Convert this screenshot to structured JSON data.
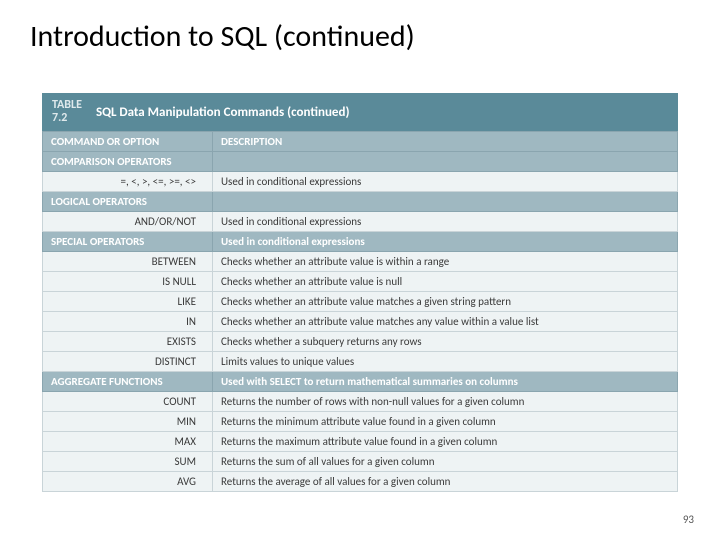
{
  "slide": {
    "title": "Introduction to SQL (continued)",
    "page_number": "93"
  },
  "table": {
    "label_line1": "TABLE",
    "label_line2": "7.2",
    "caption": "SQL Data Manipulation Commands (continued)",
    "columns": {
      "left": "COMMAND OR OPTION",
      "right": "DESCRIPTION"
    },
    "sections": [
      {
        "name": "COMPARISON OPERATORS",
        "section_desc": "",
        "rows": [
          {
            "cmd": "=, <, >, <=, >=, <>",
            "desc": "Used in conditional expressions"
          }
        ]
      },
      {
        "name": "LOGICAL OPERATORS",
        "section_desc": "",
        "rows": [
          {
            "cmd": "AND/OR/NOT",
            "desc": "Used in conditional expressions"
          }
        ]
      },
      {
        "name": "SPECIAL OPERATORS",
        "section_desc": "Used in conditional expressions",
        "rows": [
          {
            "cmd": "BETWEEN",
            "desc": "Checks whether an attribute value is within a range"
          },
          {
            "cmd": "IS NULL",
            "desc": "Checks whether an attribute value is null"
          },
          {
            "cmd": "LIKE",
            "desc": "Checks whether an attribute value matches a given string pattern"
          },
          {
            "cmd": "IN",
            "desc": "Checks whether an attribute value matches any value within a value list"
          },
          {
            "cmd": "EXISTS",
            "desc": "Checks whether a subquery returns any rows"
          },
          {
            "cmd": "DISTINCT",
            "desc": "Limits values to unique values"
          }
        ]
      },
      {
        "name": "AGGREGATE FUNCTIONS",
        "section_desc": "Used with SELECT to return mathematical summaries on columns",
        "rows": [
          {
            "cmd": "COUNT",
            "desc": "Returns the number of rows with non-null values for a given column"
          },
          {
            "cmd": "MIN",
            "desc": "Returns the minimum attribute value found in a given column"
          },
          {
            "cmd": "MAX",
            "desc": "Returns the maximum attribute value found in a given column"
          },
          {
            "cmd": "SUM",
            "desc": "Returns the sum of all values for a given column"
          },
          {
            "cmd": "AVG",
            "desc": "Returns the average of all values for a given column"
          }
        ]
      }
    ]
  },
  "colors": {
    "header_bg": "#5a8a99",
    "section_bg": "#9fb8c1",
    "row_bg": "#eef3f4",
    "border": "#c9d4d8"
  }
}
